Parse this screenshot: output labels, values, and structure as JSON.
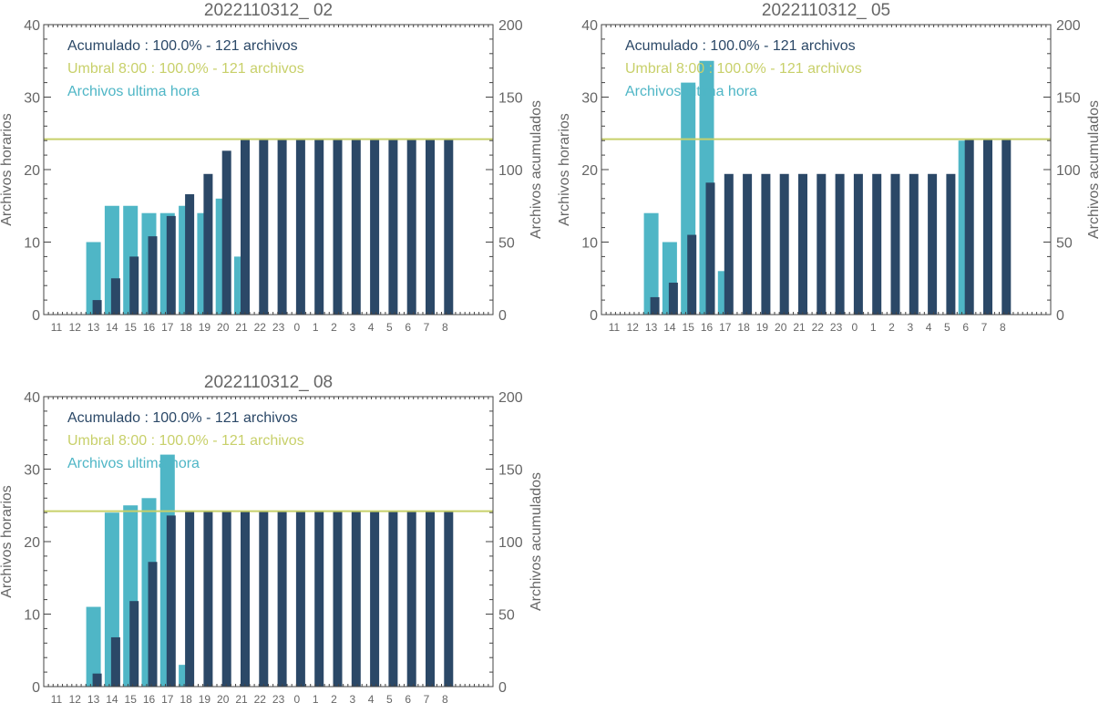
{
  "colors": {
    "hourly": "#4fb6c6",
    "cumulative": "#2b4867",
    "threshold": "#c8d06a",
    "axis": "#444444",
    "text": "#666666"
  },
  "chart_data": [
    {
      "type": "bar",
      "title": "2022110312_ 02",
      "ylabel_left": "Archivos horarios",
      "ylabel_right": "Archivos acumulados",
      "ylim_left": [
        0,
        40
      ],
      "ylim_right": [
        0,
        200
      ],
      "yticks_left": [
        "0",
        "10",
        "20",
        "30",
        "40"
      ],
      "yticks_right": [
        "0",
        "50",
        "100",
        "150",
        "200"
      ],
      "categories": [
        "11",
        "12",
        "13",
        "14",
        "15",
        "16",
        "17",
        "18",
        "19",
        "20",
        "21",
        "22",
        "23",
        "0",
        "1",
        "2",
        "3",
        "4",
        "5",
        "6",
        "7",
        "8"
      ],
      "legend": [
        {
          "text": "Acumulado : 100.0% - 121 archivos",
          "color": "#2b4867"
        },
        {
          "text": "Umbral 8:00 : 100.0% - 121 archivos",
          "color": "#c8d06a"
        },
        {
          "text": "Archivos ultima hora",
          "color": "#4fb6c6"
        }
      ],
      "series": [
        {
          "name": "Archivos ultima hora",
          "axis": "left",
          "values": [
            0,
            0,
            10,
            15,
            15,
            14,
            14,
            15,
            14,
            16,
            8,
            0,
            0,
            0,
            0,
            0,
            0,
            0,
            0,
            0,
            0,
            0
          ]
        },
        {
          "name": "Acumulado",
          "axis": "right",
          "values": [
            0,
            0,
            10,
            25,
            40,
            54,
            68,
            83,
            97,
            113,
            121,
            121,
            121,
            121,
            121,
            121,
            121,
            121,
            121,
            121,
            121,
            121
          ]
        }
      ],
      "threshold": 121
    },
    {
      "type": "bar",
      "title": "2022110312_ 05",
      "ylabel_left": "Archivos horarios",
      "ylabel_right": "Archivos acumulados",
      "ylim_left": [
        0,
        40
      ],
      "ylim_right": [
        0,
        200
      ],
      "yticks_left": [
        "0",
        "10",
        "20",
        "30",
        "40"
      ],
      "yticks_right": [
        "0",
        "50",
        "100",
        "150",
        "200"
      ],
      "categories": [
        "11",
        "12",
        "13",
        "14",
        "15",
        "16",
        "17",
        "18",
        "19",
        "20",
        "21",
        "22",
        "23",
        "0",
        "1",
        "2",
        "3",
        "4",
        "5",
        "6",
        "7",
        "8"
      ],
      "legend": [
        {
          "text": "Acumulado : 100.0% - 121 archivos",
          "color": "#2b4867"
        },
        {
          "text": "Umbral 8:00 : 100.0% - 121 archivos",
          "color": "#c8d06a"
        },
        {
          "text": "Archivos ultima hora",
          "color": "#4fb6c6"
        }
      ],
      "series": [
        {
          "name": "Archivos ultima hora",
          "axis": "left",
          "values": [
            0,
            0,
            14,
            10,
            32,
            35,
            6,
            0,
            0,
            0,
            0,
            0,
            0,
            0,
            0,
            0,
            0,
            0,
            0,
            24,
            0,
            0
          ]
        },
        {
          "name": "Acumulado",
          "axis": "right",
          "values": [
            0,
            0,
            12,
            22,
            55,
            91,
            97,
            97,
            97,
            97,
            97,
            97,
            97,
            97,
            97,
            97,
            97,
            97,
            97,
            121,
            121,
            121
          ]
        }
      ],
      "threshold": 121
    },
    {
      "type": "bar",
      "title": "2022110312_ 08",
      "ylabel_left": "Archivos horarios",
      "ylabel_right": "Archivos acumulados",
      "ylim_left": [
        0,
        40
      ],
      "ylim_right": [
        0,
        200
      ],
      "yticks_left": [
        "0",
        "10",
        "20",
        "30",
        "40"
      ],
      "yticks_right": [
        "0",
        "50",
        "100",
        "150",
        "200"
      ],
      "categories": [
        "11",
        "12",
        "13",
        "14",
        "15",
        "16",
        "17",
        "18",
        "19",
        "20",
        "21",
        "22",
        "23",
        "0",
        "1",
        "2",
        "3",
        "4",
        "5",
        "6",
        "7",
        "8"
      ],
      "legend": [
        {
          "text": "Acumulado : 100.0% - 121 archivos",
          "color": "#2b4867"
        },
        {
          "text": "Umbral 8:00 : 100.0% - 121 archivos",
          "color": "#c8d06a"
        },
        {
          "text": "Archivos ultima hora",
          "color": "#4fb6c6"
        }
      ],
      "series": [
        {
          "name": "Archivos ultima hora",
          "axis": "left",
          "values": [
            0,
            0,
            11,
            24,
            25,
            26,
            32,
            3,
            0,
            0,
            0,
            0,
            0,
            0,
            0,
            0,
            0,
            0,
            0,
            0,
            0,
            0
          ]
        },
        {
          "name": "Acumulado",
          "axis": "right",
          "values": [
            0,
            0,
            9,
            34,
            59,
            86,
            118,
            121,
            121,
            121,
            121,
            121,
            121,
            121,
            121,
            121,
            121,
            121,
            121,
            121,
            121,
            121
          ]
        }
      ],
      "threshold": 121
    }
  ]
}
